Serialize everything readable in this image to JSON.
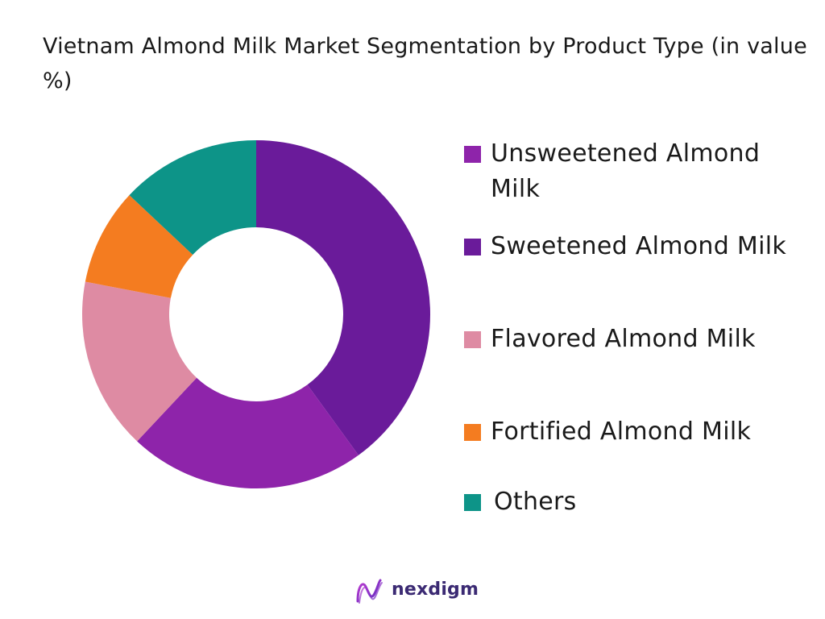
{
  "chart_data": {
    "type": "pie",
    "title": "Vietnam Almond Milk Market Segmentation by Product Type (in value %)",
    "legend_position": "right",
    "donut": true,
    "slices": [
      {
        "label": "Unsweetened Almond Milk",
        "value": 22,
        "color": "#8e24aa"
      },
      {
        "label": "Sweetened Almond Milk",
        "value": 40,
        "color": "#6a1b9a"
      },
      {
        "label": "Flavored Almond Milk",
        "value": 16,
        "color": "#de8ba3"
      },
      {
        "label": "Fortified Almond Milk",
        "value": 9,
        "color": "#f47c20"
      },
      {
        "label": "Others",
        "value": 13,
        "color": "#0d9488"
      }
    ]
  },
  "brand": {
    "name": "nexdigm",
    "logo_icon": "nexdigm-wave-logo-icon"
  }
}
